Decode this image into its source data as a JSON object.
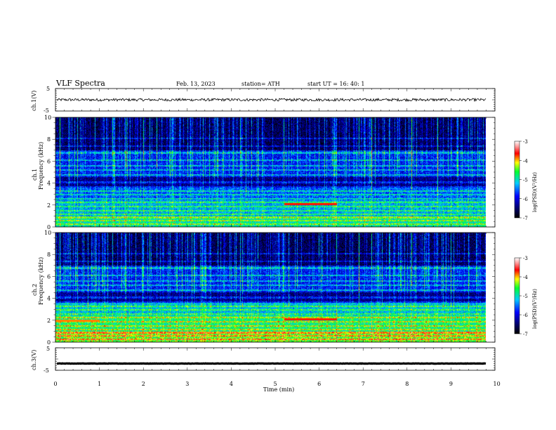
{
  "header": {
    "title": "VLF  Spectra",
    "date": "Feb. 13, 2023",
    "station": "station= ATH",
    "start_ut": "start  UT  =    16: 40: 1"
  },
  "chart_data": [
    {
      "type": "line",
      "name": "ch1-waveform",
      "ylabel": "ch.1(V)",
      "ylim": [
        -5,
        5
      ],
      "yticks": [
        "5",
        "-5"
      ],
      "xlim": [
        0,
        10
      ],
      "baseline": 0.0,
      "amplitude": 0.6,
      "color": "#000000"
    },
    {
      "type": "heatmap",
      "name": "ch1-spectrogram",
      "ylabel_top": "ch.1",
      "ylabel": "Frequency  (kHz)",
      "ylim": [
        0,
        10
      ],
      "yticks": [
        "0",
        "2",
        "4",
        "6",
        "8",
        "10"
      ],
      "xlim": [
        0,
        9.8
      ],
      "colorbar": {
        "label": "log(PSD)(V²/Hz)",
        "ticks": [
          "-3",
          "-4",
          "-5",
          "-6",
          "-7"
        ],
        "range": [
          -7,
          -3
        ]
      },
      "prominent_sferics_min": [
        0.1,
        0.3,
        0.5,
        0.9,
        1.3,
        1.6,
        2.0,
        2.15,
        2.3,
        2.6,
        3.0,
        3.3,
        3.7,
        4.2,
        4.6,
        5.2,
        5.5,
        6.0,
        6.4,
        6.9,
        7.2,
        7.6,
        8.1,
        8.7,
        9.0,
        9.4
      ]
    },
    {
      "type": "heatmap",
      "name": "ch2-spectrogram",
      "ylabel_top": "ch.2",
      "ylabel": "Frequency  (kHz)",
      "ylim": [
        0,
        10
      ],
      "yticks": [
        "0",
        "2",
        "4",
        "6",
        "8",
        "10"
      ],
      "xlim": [
        0,
        9.8
      ],
      "colorbar": {
        "label": "log(PSD)(V²/Hz)",
        "ticks": [
          "-3",
          "-4",
          "-5",
          "-6",
          "-7"
        ],
        "range": [
          -7,
          -3
        ]
      },
      "prominent_sferics_min": [
        0.1,
        0.3,
        0.5,
        0.9,
        1.3,
        1.6,
        2.0,
        2.15,
        2.3,
        2.6,
        3.0,
        3.3,
        3.7,
        4.2,
        4.6,
        5.2,
        5.5,
        6.0,
        6.4,
        6.9,
        7.2,
        7.6,
        8.1,
        8.7,
        9.0,
        9.4
      ]
    },
    {
      "type": "line",
      "name": "ch3-waveform",
      "ylabel": "ch.3(V)",
      "ylim": [
        -5,
        5
      ],
      "yticks": [
        "5",
        "-5"
      ],
      "xlim": [
        0,
        10
      ],
      "baseline": -2.0,
      "amplitude": 0.15,
      "color": "#000000"
    }
  ],
  "x_axis": {
    "label": "Time  (min)",
    "ticks": [
      "0",
      "1",
      "2",
      "3",
      "4",
      "5",
      "6",
      "7",
      "8",
      "9",
      "10"
    ],
    "range": [
      0,
      10
    ]
  }
}
